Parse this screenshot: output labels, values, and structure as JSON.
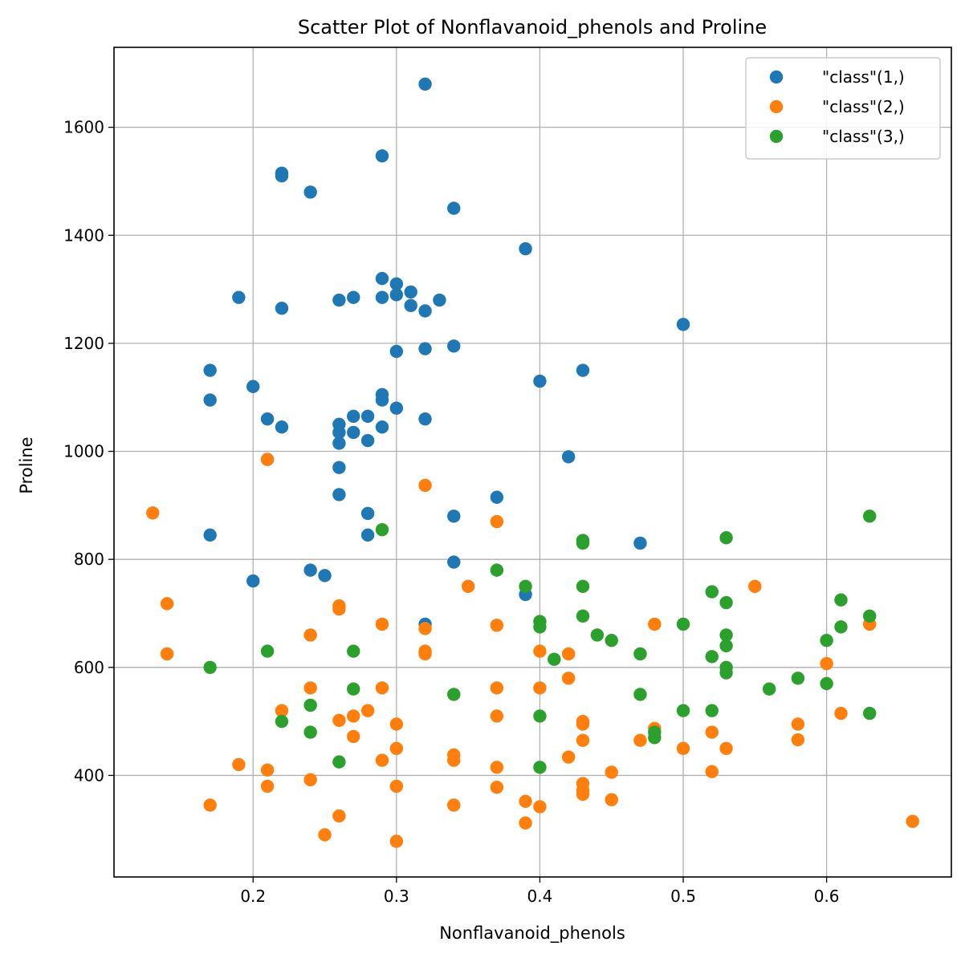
{
  "chart_data": {
    "type": "scatter",
    "title": "Scatter Plot of Nonflavanoid_phenols and Proline",
    "xlabel": "Nonflavanoid_phenols",
    "ylabel": "Proline",
    "xlim": [
      0.103,
      0.687
    ],
    "ylim": [
      212,
      1748
    ],
    "xticks": [
      0.2,
      0.3,
      0.4,
      0.5,
      0.6
    ],
    "xtick_labels": [
      "0.2",
      "0.3",
      "0.4",
      "0.5",
      "0.6"
    ],
    "yticks": [
      400,
      600,
      800,
      1000,
      1200,
      1400,
      1600
    ],
    "ytick_labels": [
      "400",
      "600",
      "800",
      "1000",
      "1200",
      "1400",
      "1600"
    ],
    "grid": true,
    "legend_position": "top-right",
    "series": [
      {
        "name": "\"class\"(1,)",
        "color": "#1f77b4",
        "points": [
          [
            0.32,
            1680
          ],
          [
            0.29,
            1547
          ],
          [
            0.22,
            1515
          ],
          [
            0.22,
            1510
          ],
          [
            0.24,
            1480
          ],
          [
            0.34,
            1450
          ],
          [
            0.39,
            1375
          ],
          [
            0.29,
            1320
          ],
          [
            0.3,
            1310
          ],
          [
            0.31,
            1295
          ],
          [
            0.19,
            1285
          ],
          [
            0.27,
            1285
          ],
          [
            0.29,
            1285
          ],
          [
            0.3,
            1290
          ],
          [
            0.26,
            1280
          ],
          [
            0.33,
            1280
          ],
          [
            0.31,
            1270
          ],
          [
            0.22,
            1265
          ],
          [
            0.32,
            1260
          ],
          [
            0.5,
            1235
          ],
          [
            0.34,
            1195
          ],
          [
            0.32,
            1190
          ],
          [
            0.3,
            1185
          ],
          [
            0.17,
            1150
          ],
          [
            0.43,
            1150
          ],
          [
            0.4,
            1130
          ],
          [
            0.2,
            1120
          ],
          [
            0.29,
            1105
          ],
          [
            0.17,
            1095
          ],
          [
            0.29,
            1095
          ],
          [
            0.3,
            1080
          ],
          [
            0.27,
            1065
          ],
          [
            0.28,
            1065
          ],
          [
            0.21,
            1060
          ],
          [
            0.32,
            1060
          ],
          [
            0.26,
            1050
          ],
          [
            0.22,
            1045
          ],
          [
            0.29,
            1045
          ],
          [
            0.26,
            1035
          ],
          [
            0.27,
            1035
          ],
          [
            0.28,
            1020
          ],
          [
            0.26,
            1015
          ],
          [
            0.42,
            990
          ],
          [
            0.21,
            985
          ],
          [
            0.26,
            970
          ],
          [
            0.26,
            920
          ],
          [
            0.37,
            915
          ],
          [
            0.28,
            885
          ],
          [
            0.34,
            880
          ],
          [
            0.17,
            845
          ],
          [
            0.28,
            845
          ],
          [
            0.47,
            830
          ],
          [
            0.34,
            795
          ],
          [
            0.24,
            780
          ],
          [
            0.25,
            770
          ],
          [
            0.2,
            760
          ],
          [
            0.39,
            735
          ],
          [
            0.32,
            680
          ]
        ]
      },
      {
        "name": "\"class\"(2,)",
        "color": "#ff7f0e",
        "points": [
          [
            0.21,
            985
          ],
          [
            0.32,
            937
          ],
          [
            0.13,
            886
          ],
          [
            0.37,
            870
          ],
          [
            0.35,
            750
          ],
          [
            0.55,
            750
          ],
          [
            0.14,
            718
          ],
          [
            0.26,
            714
          ],
          [
            0.26,
            708
          ],
          [
            0.29,
            680
          ],
          [
            0.37,
            678
          ],
          [
            0.48,
            680
          ],
          [
            0.63,
            680
          ],
          [
            0.32,
            672
          ],
          [
            0.24,
            660
          ],
          [
            0.32,
            630
          ],
          [
            0.4,
            630
          ],
          [
            0.14,
            625
          ],
          [
            0.32,
            625
          ],
          [
            0.42,
            625
          ],
          [
            0.6,
            607
          ],
          [
            0.42,
            580
          ],
          [
            0.24,
            562
          ],
          [
            0.29,
            562
          ],
          [
            0.37,
            562
          ],
          [
            0.4,
            562
          ],
          [
            0.22,
            520
          ],
          [
            0.28,
            520
          ],
          [
            0.61,
            515
          ],
          [
            0.27,
            510
          ],
          [
            0.37,
            510
          ],
          [
            0.26,
            502
          ],
          [
            0.43,
            500
          ],
          [
            0.3,
            495
          ],
          [
            0.43,
            495
          ],
          [
            0.58,
            495
          ],
          [
            0.48,
            487
          ],
          [
            0.52,
            480
          ],
          [
            0.27,
            472
          ],
          [
            0.47,
            465
          ],
          [
            0.43,
            465
          ],
          [
            0.58,
            466
          ],
          [
            0.3,
            450
          ],
          [
            0.5,
            450
          ],
          [
            0.53,
            450
          ],
          [
            0.34,
            438
          ],
          [
            0.42,
            434
          ],
          [
            0.29,
            428
          ],
          [
            0.34,
            428
          ],
          [
            0.19,
            420
          ],
          [
            0.37,
            415
          ],
          [
            0.21,
            410
          ],
          [
            0.45,
            406
          ],
          [
            0.52,
            407
          ],
          [
            0.24,
            392
          ],
          [
            0.43,
            385
          ],
          [
            0.21,
            380
          ],
          [
            0.3,
            380
          ],
          [
            0.37,
            378
          ],
          [
            0.43,
            372
          ],
          [
            0.43,
            365
          ],
          [
            0.45,
            355
          ],
          [
            0.39,
            352
          ],
          [
            0.17,
            345
          ],
          [
            0.34,
            345
          ],
          [
            0.4,
            342
          ],
          [
            0.26,
            325
          ],
          [
            0.66,
            315
          ],
          [
            0.39,
            312
          ],
          [
            0.25,
            290
          ],
          [
            0.3,
            278
          ]
        ]
      },
      {
        "name": "\"class\"(3,)",
        "color": "#2ca02c",
        "points": [
          [
            0.63,
            880
          ],
          [
            0.29,
            855
          ],
          [
            0.53,
            840
          ],
          [
            0.43,
            835
          ],
          [
            0.43,
            830
          ],
          [
            0.37,
            780
          ],
          [
            0.39,
            750
          ],
          [
            0.43,
            750
          ],
          [
            0.52,
            740
          ],
          [
            0.61,
            725
          ],
          [
            0.53,
            720
          ],
          [
            0.43,
            695
          ],
          [
            0.63,
            695
          ],
          [
            0.4,
            685
          ],
          [
            0.4,
            675
          ],
          [
            0.5,
            680
          ],
          [
            0.61,
            675
          ],
          [
            0.44,
            660
          ],
          [
            0.53,
            660
          ],
          [
            0.45,
            650
          ],
          [
            0.6,
            650
          ],
          [
            0.53,
            640
          ],
          [
            0.21,
            630
          ],
          [
            0.27,
            630
          ],
          [
            0.47,
            625
          ],
          [
            0.52,
            620
          ],
          [
            0.41,
            615
          ],
          [
            0.17,
            600
          ],
          [
            0.53,
            600
          ],
          [
            0.53,
            590
          ],
          [
            0.58,
            580
          ],
          [
            0.6,
            570
          ],
          [
            0.27,
            560
          ],
          [
            0.56,
            560
          ],
          [
            0.34,
            550
          ],
          [
            0.47,
            550
          ],
          [
            0.24,
            530
          ],
          [
            0.5,
            520
          ],
          [
            0.52,
            520
          ],
          [
            0.63,
            515
          ],
          [
            0.4,
            510
          ],
          [
            0.22,
            500
          ],
          [
            0.24,
            480
          ],
          [
            0.48,
            480
          ],
          [
            0.48,
            470
          ],
          [
            0.26,
            425
          ],
          [
            0.4,
            415
          ]
        ]
      }
    ]
  }
}
